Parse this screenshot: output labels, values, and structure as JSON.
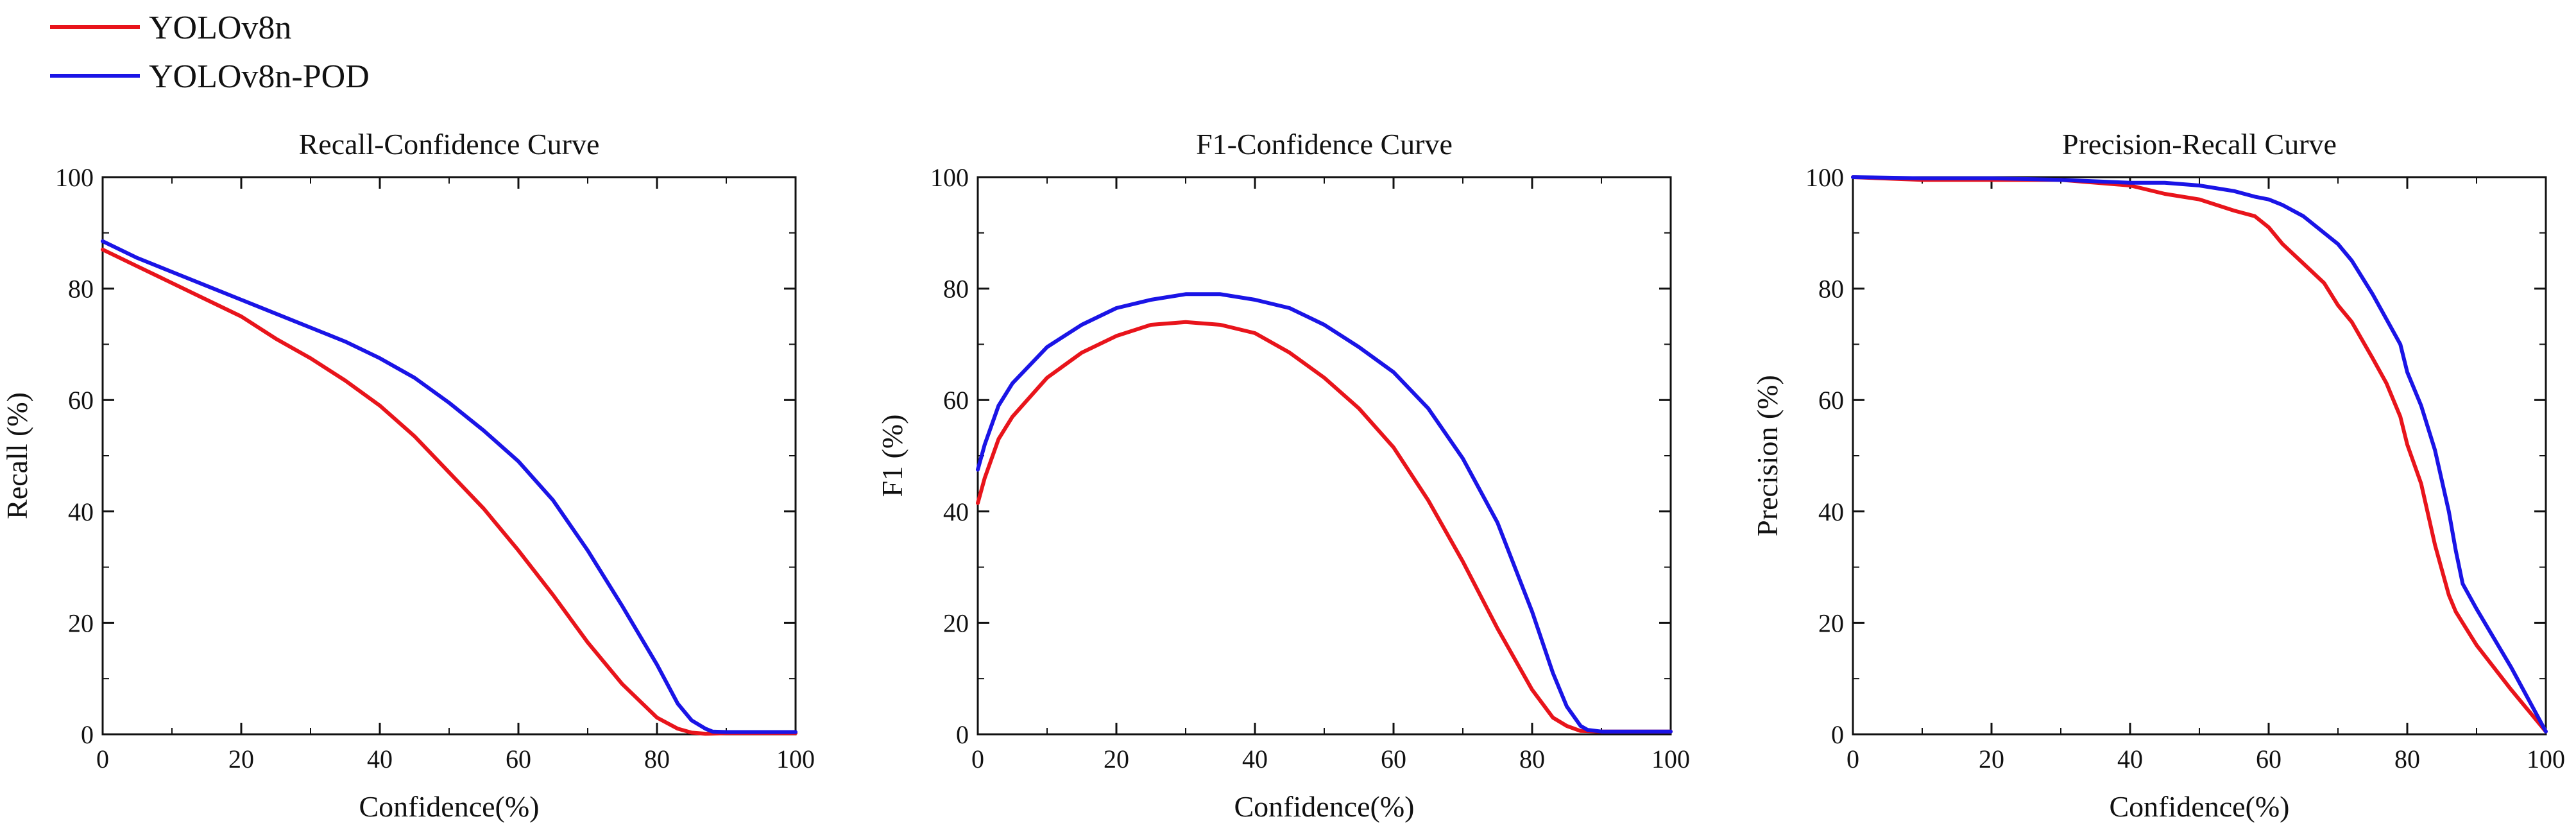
{
  "legend": {
    "items": [
      {
        "name": "YOLOv8n",
        "color": "#e8141b"
      },
      {
        "name": "YOLOv8n-POD",
        "color": "#1a14e6"
      }
    ]
  },
  "chart_data": [
    {
      "type": "line",
      "title": "Recall-Confidence Curve",
      "xlabel": "Confidence(%)",
      "ylabel": "Recall (%)",
      "xlim": [
        0,
        100
      ],
      "ylim": [
        0,
        100
      ],
      "xticks": [
        0,
        20,
        40,
        60,
        80,
        100
      ],
      "yticks": [
        0,
        20,
        40,
        60,
        80,
        100
      ],
      "tick_labels_x": [
        "0",
        "20",
        "40",
        "60",
        "80",
        "100"
      ],
      "tick_labels_y": [
        "0",
        "20",
        "40",
        "60",
        "80",
        "100"
      ],
      "series": [
        {
          "name": "YOLOv8n",
          "color": "#e8141b",
          "x": [
            0,
            5,
            10,
            15,
            20,
            25,
            30,
            35,
            40,
            45,
            50,
            55,
            60,
            65,
            70,
            75,
            80,
            83,
            85,
            87,
            90,
            95,
            100
          ],
          "y": [
            87,
            84,
            81,
            78,
            75,
            71,
            67.5,
            63.5,
            59,
            53.5,
            47,
            40.5,
            33,
            25,
            16.5,
            9,
            3,
            1,
            0.3,
            0.1,
            0.2,
            0.2,
            0.2
          ]
        },
        {
          "name": "YOLOv8n-POD",
          "color": "#1a14e6",
          "x": [
            0,
            5,
            10,
            15,
            20,
            25,
            30,
            35,
            40,
            45,
            50,
            55,
            60,
            65,
            70,
            75,
            80,
            83,
            85,
            87,
            88,
            90,
            95,
            100
          ],
          "y": [
            88.5,
            85.5,
            83,
            80.5,
            78,
            75.5,
            73,
            70.5,
            67.5,
            64,
            59.5,
            54.5,
            49,
            42,
            33,
            23,
            12.5,
            5.5,
            2.5,
            1,
            0.5,
            0.4,
            0.4,
            0.4
          ]
        }
      ]
    },
    {
      "type": "line",
      "title": "F1-Confidence Curve",
      "xlabel": "Confidence(%)",
      "ylabel": "F1 (%)",
      "xlim": [
        0,
        100
      ],
      "ylim": [
        0,
        100
      ],
      "xticks": [
        0,
        20,
        40,
        60,
        80,
        100
      ],
      "yticks": [
        0,
        20,
        40,
        60,
        80,
        100
      ],
      "tick_labels_x": [
        "0",
        "20",
        "40",
        "60",
        "80",
        "100"
      ],
      "tick_labels_y": [
        "0",
        "20",
        "40",
        "60",
        "80",
        "100"
      ],
      "series": [
        {
          "name": "YOLOv8n",
          "color": "#e8141b",
          "x": [
            0,
            1,
            3,
            5,
            10,
            15,
            20,
            25,
            30,
            35,
            40,
            45,
            50,
            55,
            60,
            65,
            70,
            75,
            80,
            83,
            85,
            87,
            90,
            95,
            100
          ],
          "y": [
            41.5,
            46,
            53,
            57,
            64,
            68.5,
            71.5,
            73.5,
            74,
            73.5,
            72,
            68.5,
            64,
            58.5,
            51.5,
            42,
            31,
            19,
            8,
            3,
            1.5,
            0.6,
            0.5,
            0.5,
            0.5
          ]
        },
        {
          "name": "YOLOv8n-POD",
          "color": "#1a14e6",
          "x": [
            0,
            1,
            3,
            5,
            10,
            15,
            20,
            25,
            30,
            35,
            40,
            45,
            50,
            55,
            60,
            65,
            70,
            75,
            80,
            83,
            85,
            87,
            88,
            90,
            95,
            100
          ],
          "y": [
            47.5,
            52,
            59,
            63,
            69.5,
            73.5,
            76.5,
            78,
            79,
            79,
            78,
            76.5,
            73.5,
            69.5,
            65,
            58.5,
            49.5,
            38,
            22,
            11,
            5,
            1.5,
            0.8,
            0.5,
            0.5,
            0.5
          ]
        }
      ]
    },
    {
      "type": "line",
      "title": "Precision-Recall Curve",
      "xlabel": "Confidence(%)",
      "ylabel": "Precision (%)",
      "xlim": [
        0,
        100
      ],
      "ylim": [
        0,
        100
      ],
      "xticks": [
        0,
        20,
        40,
        60,
        80,
        100
      ],
      "yticks": [
        0,
        20,
        40,
        60,
        80,
        100
      ],
      "tick_labels_x": [
        "0",
        "20",
        "40",
        "60",
        "80",
        "100"
      ],
      "tick_labels_y": [
        "0",
        "20",
        "40",
        "60",
        "80",
        "100"
      ],
      "series": [
        {
          "name": "YOLOv8n",
          "color": "#e8141b",
          "x": [
            0,
            10,
            20,
            30,
            40,
            45,
            50,
            55,
            58,
            60,
            62,
            65,
            68,
            70,
            72,
            75,
            77,
            79,
            80,
            82,
            84,
            86,
            87,
            88,
            90,
            95,
            100
          ],
          "y": [
            100,
            99.5,
            99.5,
            99.5,
            98.5,
            97,
            96,
            94,
            93,
            91,
            88,
            84.5,
            81,
            77,
            74,
            67.5,
            63,
            57,
            52,
            45,
            34,
            25,
            22,
            20,
            16,
            8,
            0.5
          ]
        },
        {
          "name": "YOLOv8n-POD",
          "color": "#1a14e6",
          "x": [
            0,
            10,
            20,
            30,
            40,
            45,
            50,
            55,
            58,
            60,
            62,
            65,
            68,
            70,
            72,
            75,
            77,
            79,
            80,
            82,
            84,
            86,
            87,
            88,
            90,
            95,
            100
          ],
          "y": [
            100,
            99.8,
            99.8,
            99.5,
            99,
            99,
            98.5,
            97.5,
            96.5,
            96,
            95,
            93,
            90,
            88,
            85,
            79,
            74.5,
            70,
            65,
            59,
            51,
            40,
            33,
            27,
            22.5,
            12,
            0.5
          ]
        }
      ]
    }
  ]
}
